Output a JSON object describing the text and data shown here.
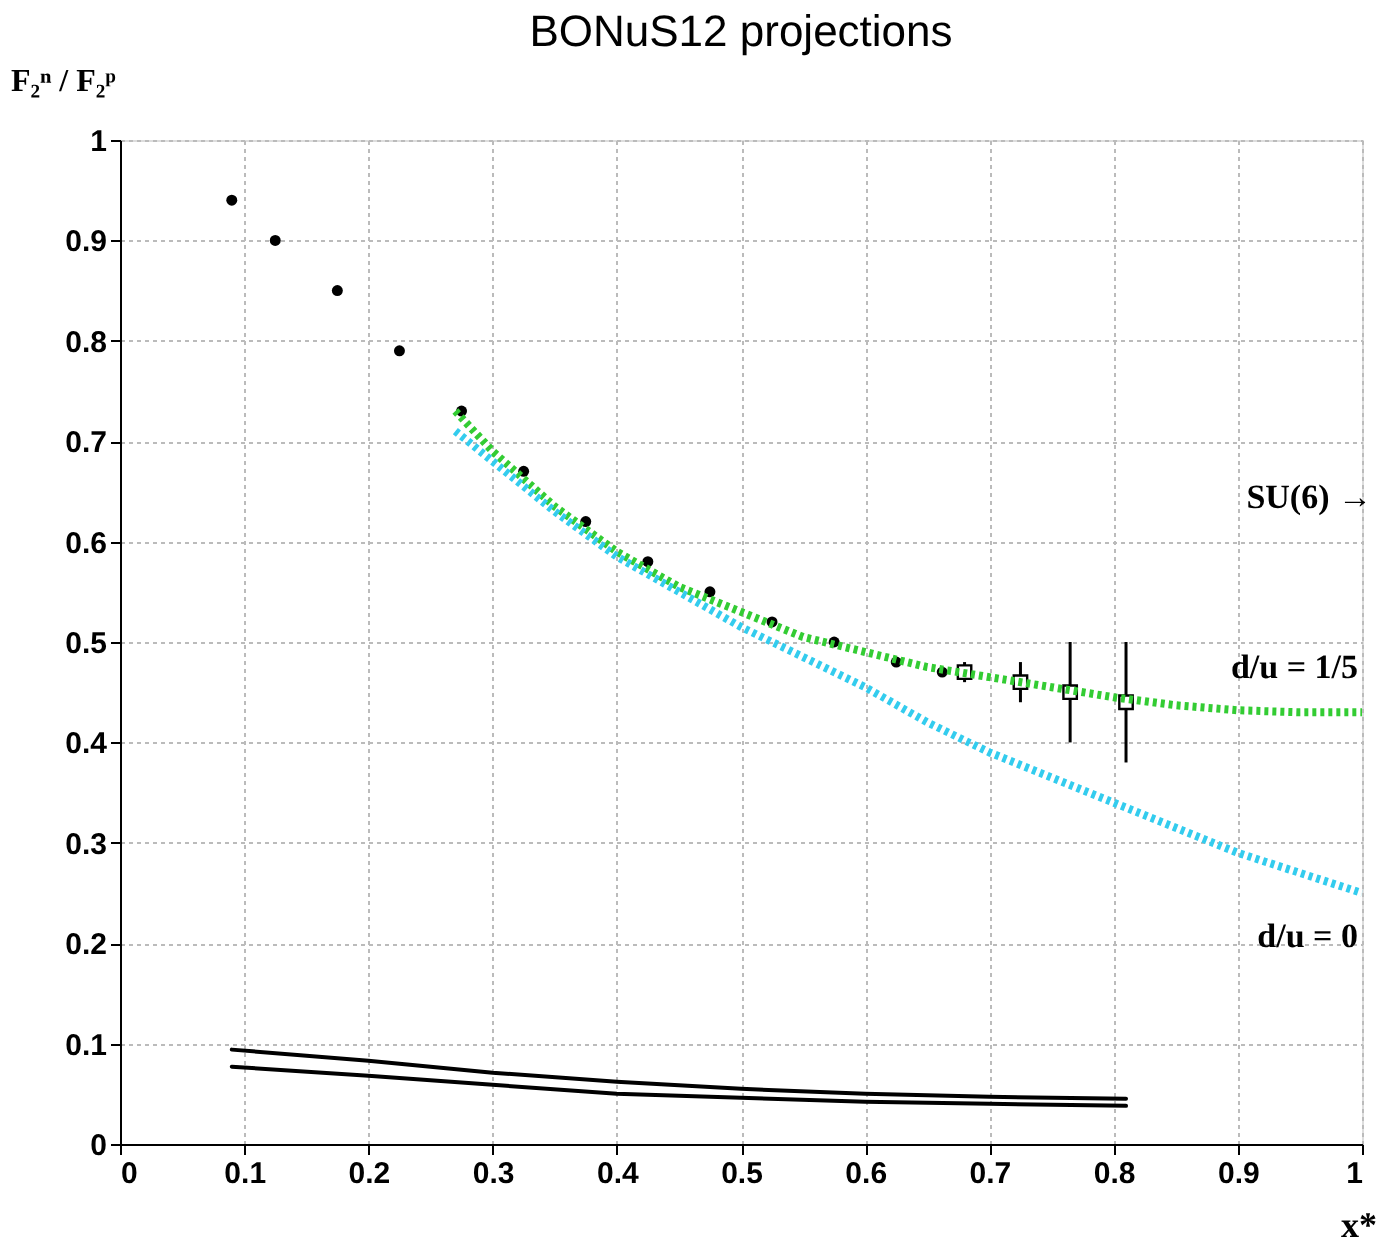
{
  "chart_data": {
    "type": "scatter",
    "title": "BONuS12 projections",
    "xlabel": "x*",
    "ylabel": "F₂ⁿ / F₂ᵖ",
    "xlim": [
      0,
      1
    ],
    "ylim": [
      0,
      1
    ],
    "xticks": [
      0,
      0.1,
      0.2,
      0.3,
      0.4,
      0.5,
      0.6,
      0.7,
      0.8,
      0.9,
      1
    ],
    "yticks": [
      0,
      0.1,
      0.2,
      0.3,
      0.4,
      0.5,
      0.6,
      0.7,
      0.8,
      0.9,
      1
    ],
    "grid": true,
    "series": [
      {
        "marker": "circle",
        "color": "#000000",
        "x": [
          0.09,
          0.125,
          0.175,
          0.225,
          0.275,
          0.325,
          0.375,
          0.425,
          0.475,
          0.525,
          0.575,
          0.625,
          0.662
        ],
        "values": [
          0.94,
          0.9,
          0.85,
          0.79,
          0.73,
          0.67,
          0.62,
          0.58,
          0.55,
          0.52,
          0.5,
          0.48,
          0.47
        ]
      },
      {
        "marker": "square",
        "color": "#000000",
        "x": [
          0.68,
          0.725,
          0.765,
          0.81
        ],
        "values": [
          0.47,
          0.46,
          0.45,
          0.44
        ],
        "errors": [
          0.01,
          0.02,
          0.05,
          0.06
        ]
      },
      {
        "type": "line",
        "line_style": "dotted",
        "color": "#33cc33",
        "x": [
          0.27,
          0.3,
          0.35,
          0.4,
          0.45,
          0.5,
          0.55,
          0.6,
          0.65,
          0.7,
          0.75,
          0.8,
          0.85,
          0.9,
          0.95,
          1.0
        ],
        "values": [
          0.73,
          0.69,
          0.635,
          0.59,
          0.555,
          0.53,
          0.505,
          0.49,
          0.475,
          0.465,
          0.455,
          0.445,
          0.437,
          0.432,
          0.43,
          0.43
        ]
      },
      {
        "type": "line",
        "line_style": "dotted",
        "color": "#33ccee",
        "x": [
          0.27,
          0.3,
          0.35,
          0.4,
          0.45,
          0.5,
          0.55,
          0.6,
          0.65,
          0.7,
          0.75,
          0.8,
          0.85,
          0.9,
          0.95,
          1.0
        ],
        "values": [
          0.71,
          0.68,
          0.63,
          0.585,
          0.55,
          0.515,
          0.485,
          0.455,
          0.42,
          0.39,
          0.365,
          0.34,
          0.315,
          0.29,
          0.27,
          0.25
        ]
      },
      {
        "type": "line",
        "line_style": "solid",
        "color": "#000000",
        "x": [
          0.09,
          0.2,
          0.3,
          0.4,
          0.5,
          0.6,
          0.7,
          0.81
        ],
        "values": [
          0.094,
          0.083,
          0.071,
          0.062,
          0.055,
          0.05,
          0.047,
          0.045
        ]
      },
      {
        "type": "line",
        "line_style": "solid",
        "color": "#000000",
        "x": [
          0.09,
          0.2,
          0.3,
          0.4,
          0.5,
          0.6,
          0.7,
          0.81
        ],
        "values": [
          0.077,
          0.068,
          0.059,
          0.05,
          0.046,
          0.042,
          0.04,
          0.038
        ]
      }
    ],
    "annotations": [
      "SU(6) →",
      {
        "text": "d/u = 1/5",
        "x": 1,
        "y": 0.43
      },
      {
        "text": "d/u = 0",
        "x": 1,
        "y": 0.25
      }
    ]
  }
}
